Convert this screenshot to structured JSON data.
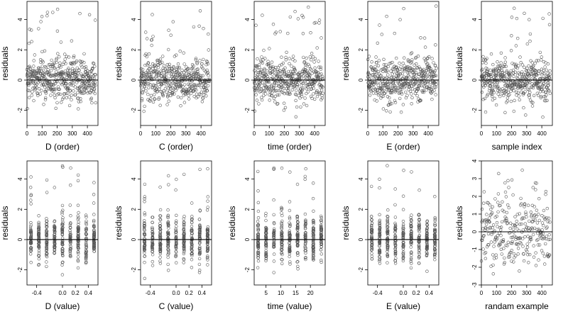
{
  "chart_data": [
    {
      "type": "scatter",
      "xlabel": "D (order)",
      "ylabel": "residuals",
      "xlim": [
        0,
        470
      ],
      "ylim": [
        -3,
        5.2
      ],
      "xticks": [
        0,
        100,
        200,
        300,
        400
      ],
      "xtick_labels": [
        "0",
        "100",
        "200",
        "300",
        "400"
      ],
      "yticks": [
        -2,
        0,
        2,
        4
      ],
      "ytick_labels": [
        "-2",
        "0",
        "2",
        "4"
      ],
      "hline": 0,
      "points": {
        "n": 470,
        "mean": 0,
        "sd": 0.72,
        "min": -2.6,
        "max": 4.9
      }
    },
    {
      "type": "scatter",
      "xlabel": "C (order)",
      "ylabel": "residuals",
      "xlim": [
        0,
        470
      ],
      "ylim": [
        -3,
        5.2
      ],
      "xticks": [
        0,
        100,
        200,
        300,
        400
      ],
      "xtick_labels": [
        "0",
        "100",
        "200",
        "300",
        "400"
      ],
      "yticks": [
        -2,
        0,
        2,
        4
      ],
      "ytick_labels": [
        "-2",
        "0",
        "2",
        "4"
      ],
      "hline": 0,
      "points": {
        "n": 470,
        "mean": 0,
        "sd": 0.72,
        "min": -2.6,
        "max": 4.9
      }
    },
    {
      "type": "scatter",
      "xlabel": "time (order)",
      "ylabel": "residuals",
      "xlim": [
        0,
        470
      ],
      "ylim": [
        -3,
        5.2
      ],
      "xticks": [
        0,
        100,
        200,
        300,
        400
      ],
      "xtick_labels": [
        "0",
        "100",
        "200",
        "300",
        "400"
      ],
      "yticks": [
        -2,
        0,
        2,
        4
      ],
      "ytick_labels": [
        "-2",
        "0",
        "2",
        "4"
      ],
      "hline": 0,
      "points": {
        "n": 470,
        "mean": 0,
        "sd": 0.72,
        "min": -2.6,
        "max": 4.9
      }
    },
    {
      "type": "scatter",
      "xlabel": "E (order)",
      "ylabel": "residuals",
      "xlim": [
        0,
        470
      ],
      "ylim": [
        -3,
        5.2
      ],
      "xticks": [
        0,
        100,
        200,
        300,
        400
      ],
      "xtick_labels": [
        "0",
        "100",
        "200",
        "300",
        "400"
      ],
      "yticks": [
        -2,
        0,
        2,
        4
      ],
      "ytick_labels": [
        "-2",
        "0",
        "2",
        "4"
      ],
      "hline": 0,
      "points": {
        "n": 470,
        "mean": 0,
        "sd": 0.72,
        "min": -2.6,
        "max": 4.9
      }
    },
    {
      "type": "scatter",
      "xlabel": "sample index",
      "ylabel": "residuals",
      "xlim": [
        0,
        470
      ],
      "ylim": [
        -3,
        5.2
      ],
      "xticks": [
        0,
        100,
        200,
        300,
        400
      ],
      "xtick_labels": [
        "0",
        "100",
        "200",
        "300",
        "400"
      ],
      "yticks": [
        -2,
        0,
        2,
        4
      ],
      "ytick_labels": [
        "-2",
        "0",
        "2",
        "4"
      ],
      "hline": 0,
      "points": {
        "n": 470,
        "mean": 0,
        "sd": 0.72,
        "min": -2.6,
        "max": 4.9
      }
    },
    {
      "type": "scatter",
      "xlabel": "D (value)",
      "ylabel": "residuals",
      "xlim": [
        -0.55,
        0.55
      ],
      "ylim": [
        -3,
        5.2
      ],
      "xticks": [
        -0.4,
        0,
        0.2,
        0.4
      ],
      "xtick_labels": [
        "-0.4",
        "0.0",
        "0.2",
        "0.4"
      ],
      "yticks": [
        -2,
        0,
        2,
        4
      ],
      "ytick_labels": [
        "-2",
        "0",
        "2",
        "4"
      ],
      "hline": 0,
      "points": {
        "n": 470,
        "mean": 0,
        "sd": 0.72,
        "min": -2.6,
        "max": 4.9
      }
    },
    {
      "type": "scatter",
      "xlabel": "C (value)",
      "ylabel": "residuals",
      "xlim": [
        -0.55,
        0.55
      ],
      "ylim": [
        -3,
        5.2
      ],
      "xticks": [
        -0.4,
        0,
        0.2,
        0.4
      ],
      "xtick_labels": [
        "-0.4",
        "0.0",
        "0.2",
        "0.4"
      ],
      "yticks": [
        -2,
        0,
        2,
        4
      ],
      "ytick_labels": [
        "-2",
        "0",
        "2",
        "4"
      ],
      "hline": 0,
      "points": {
        "n": 470,
        "mean": 0,
        "sd": 0.72,
        "min": -2.6,
        "max": 4.9
      }
    },
    {
      "type": "scatter",
      "xlabel": "time (value)",
      "ylabel": "residuals",
      "xlim": [
        1,
        25
      ],
      "ylim": [
        -3,
        5.2
      ],
      "xticks": [
        5,
        10,
        15,
        20
      ],
      "xtick_labels": [
        "5",
        "10",
        "15",
        "20"
      ],
      "yticks": [
        -2,
        0,
        2,
        4
      ],
      "ytick_labels": [
        "-2",
        "0",
        "2",
        "4"
      ],
      "hline": 0,
      "points": {
        "n": 470,
        "mean": 0,
        "sd": 0.72,
        "min": -2.6,
        "max": 4.9
      }
    },
    {
      "type": "scatter",
      "xlabel": "E (value)",
      "ylabel": "residuals",
      "xlim": [
        -0.55,
        0.55
      ],
      "ylim": [
        -3,
        5.2
      ],
      "xticks": [
        -0.4,
        0,
        0.2,
        0.4
      ],
      "xtick_labels": [
        "-0.4",
        "0.0",
        "0.2",
        "0.4"
      ],
      "yticks": [
        -2,
        0,
        2,
        4
      ],
      "ytick_labels": [
        "-2",
        "0",
        "2",
        "4"
      ],
      "hline": 0,
      "points": {
        "n": 470,
        "mean": 0,
        "sd": 0.72,
        "min": -2.6,
        "max": 4.9
      }
    },
    {
      "type": "scatter",
      "xlabel": "randam example",
      "ylabel": "residuals",
      "xlim": [
        0,
        470
      ],
      "ylim": [
        -3,
        4
      ],
      "xticks": [
        0,
        100,
        200,
        300,
        400
      ],
      "xtick_labels": [
        "0",
        "100",
        "200",
        "300",
        "400"
      ],
      "yticks": [
        -3,
        -2,
        -1,
        0,
        1,
        2,
        3,
        4
      ],
      "ytick_labels": [
        "-3",
        "-2",
        "-1",
        "0",
        "1",
        "2",
        "3",
        "4"
      ],
      "hline": 0,
      "points": {
        "n": 300,
        "mean": 0,
        "sd": 1.0,
        "min": -2.9,
        "max": 3.6
      }
    }
  ],
  "colors": {
    "axis": "#000000",
    "point_stroke": "#555555",
    "reference_line": "#000000"
  }
}
